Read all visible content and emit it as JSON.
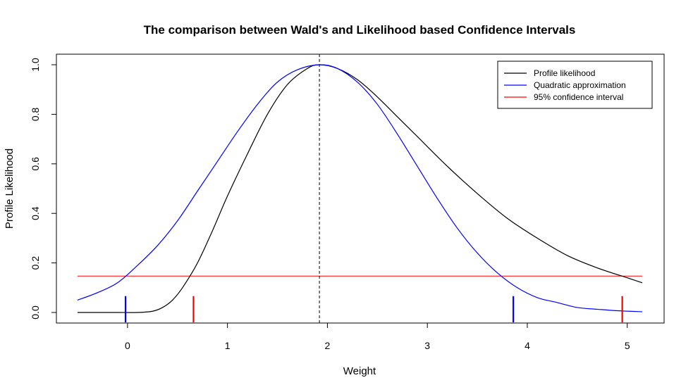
{
  "chart_data": {
    "type": "line",
    "title": "The comparison between Wald's and Likelihood based Confidence Intervals",
    "xlabel": "Weight",
    "ylabel": "Profile Likelihood",
    "xlim": [
      -0.5,
      5.15
    ],
    "ylim": [
      0,
      1
    ],
    "x_ticks": [
      "0",
      "1",
      "2",
      "3",
      "4",
      "5"
    ],
    "y_ticks": [
      "0.0",
      "0.2",
      "0.4",
      "0.6",
      "0.8",
      "1.0"
    ],
    "grid": false,
    "legend_position": "top-right",
    "series": [
      {
        "name": "Profile likelihood",
        "color": "#000000",
        "x": [
          -0.5,
          -0.3,
          -0.1,
          0.1,
          0.25,
          0.35,
          0.45,
          0.55,
          0.7,
          0.85,
          1.0,
          1.2,
          1.4,
          1.6,
          1.8,
          1.92,
          2.1,
          2.3,
          2.5,
          2.7,
          2.9,
          3.2,
          3.5,
          3.8,
          4.1,
          4.4,
          4.7,
          5.0,
          5.15
        ],
        "y": [
          0.0,
          0.0,
          0.0,
          0.0,
          0.005,
          0.02,
          0.05,
          0.1,
          0.2,
          0.33,
          0.47,
          0.64,
          0.8,
          0.92,
          0.985,
          1.0,
          0.985,
          0.94,
          0.87,
          0.79,
          0.71,
          0.59,
          0.48,
          0.38,
          0.3,
          0.23,
          0.18,
          0.14,
          0.12
        ]
      },
      {
        "name": "Quadratic approximation",
        "color": "#0000ff",
        "x": [
          -0.5,
          -0.3,
          -0.1,
          0.1,
          0.3,
          0.5,
          0.7,
          0.9,
          1.1,
          1.3,
          1.5,
          1.7,
          1.92,
          2.1,
          2.3,
          2.5,
          2.7,
          2.9,
          3.1,
          3.3,
          3.5,
          3.7,
          3.9,
          4.1,
          4.3,
          4.5,
          4.7,
          4.9,
          5.15
        ],
        "y": [
          0.05,
          0.08,
          0.12,
          0.19,
          0.27,
          0.37,
          0.49,
          0.61,
          0.73,
          0.84,
          0.93,
          0.98,
          1.0,
          0.985,
          0.93,
          0.84,
          0.72,
          0.59,
          0.46,
          0.34,
          0.24,
          0.16,
          0.1,
          0.06,
          0.04,
          0.02,
          0.013,
          0.007,
          0.003
        ]
      }
    ],
    "reference_lines": [
      {
        "name": "95% confidence interval",
        "orientation": "horizontal",
        "y": 0.147,
        "color": "#ff0000"
      },
      {
        "orientation": "vertical",
        "x": 1.92,
        "style": "dashed",
        "color": "#000000"
      }
    ],
    "interval_markers": [
      {
        "x": -0.02,
        "color": "#0000ff"
      },
      {
        "x": 3.86,
        "color": "#0000ff"
      },
      {
        "x": 0.66,
        "color": "#ff0000"
      },
      {
        "x": 4.95,
        "color": "#ff0000"
      }
    ],
    "legend": [
      {
        "label": "Profile likelihood",
        "color": "#000000"
      },
      {
        "label": "Quadratic approximation",
        "color": "#0000ff"
      },
      {
        "label": "95% confidence interval",
        "color": "#ff0000"
      }
    ]
  }
}
